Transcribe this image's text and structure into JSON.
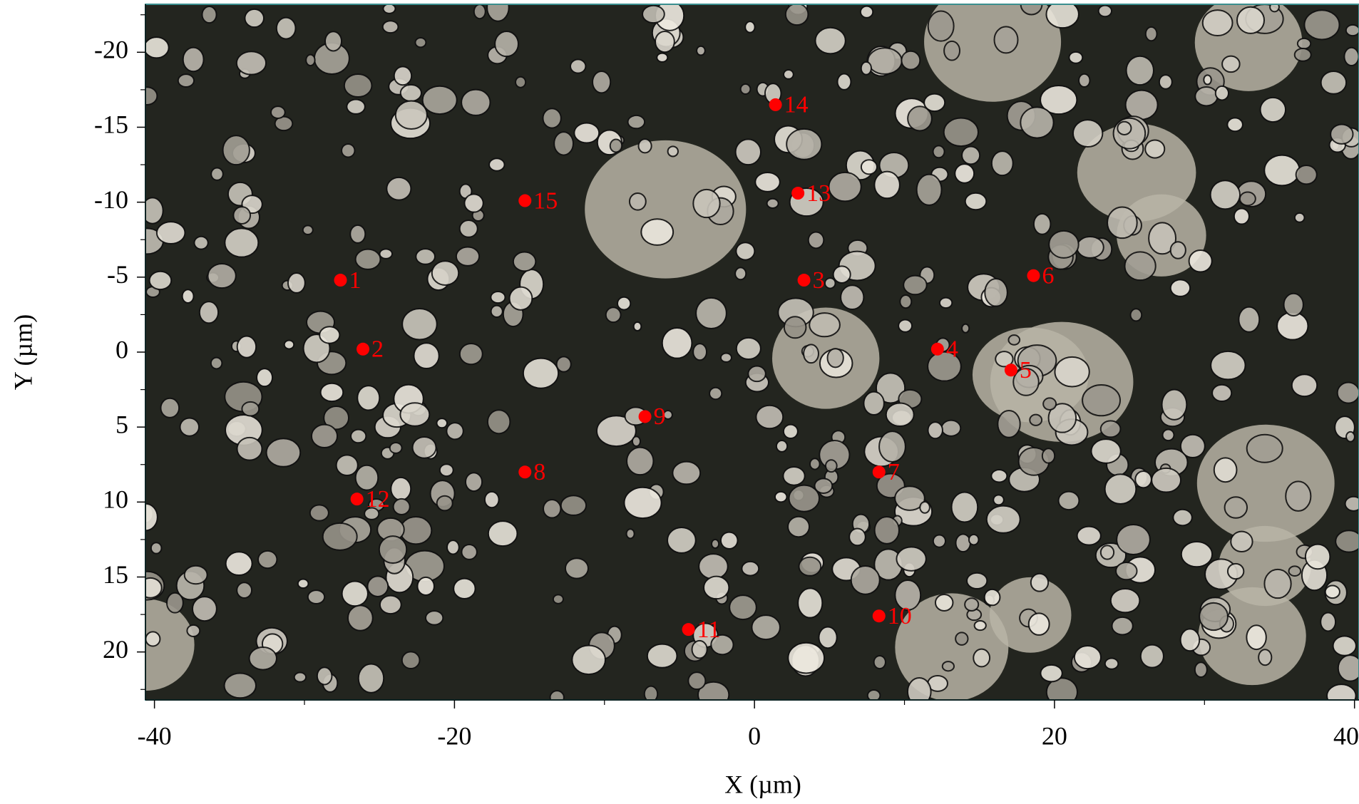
{
  "chart_data": {
    "type": "scatter",
    "x_label": "X (µm)",
    "y_label": "Y (µm)",
    "x": [
      -27.6,
      -26.1,
      3.3,
      12.2,
      17.1,
      18.6,
      8.3,
      -15.3,
      -7.3,
      8.3,
      -4.4,
      -26.5,
      2.9,
      1.4,
      -15.3
    ],
    "y": [
      -4.8,
      -0.2,
      -4.8,
      -0.2,
      1.2,
      -5.1,
      8.0,
      8.0,
      4.3,
      17.6,
      18.5,
      9.8,
      -10.6,
      -16.5,
      -10.1
    ],
    "labels": [
      "1",
      "2",
      "3",
      "4",
      "5",
      "6",
      "7",
      "8",
      "9",
      "10",
      "11",
      "12",
      "13",
      "14",
      "15"
    ],
    "color": "#ff0000",
    "xlim": [
      -40.6,
      40.3
    ],
    "ylim": [
      -23.2,
      23.2
    ],
    "y_inverted": true,
    "xticks": [
      -40,
      -20,
      0,
      20,
      40
    ],
    "yticks": [
      -20,
      -15,
      -10,
      -5,
      0,
      5,
      10,
      15,
      20
    ],
    "x_minor_ticks": [
      -30,
      -10,
      10,
      30
    ],
    "y_minor_ticks": [
      -22.5,
      -17.5,
      -12.5,
      -7.5,
      -2.5,
      2.5,
      7.5,
      12.5,
      17.5,
      22.5
    ]
  }
}
